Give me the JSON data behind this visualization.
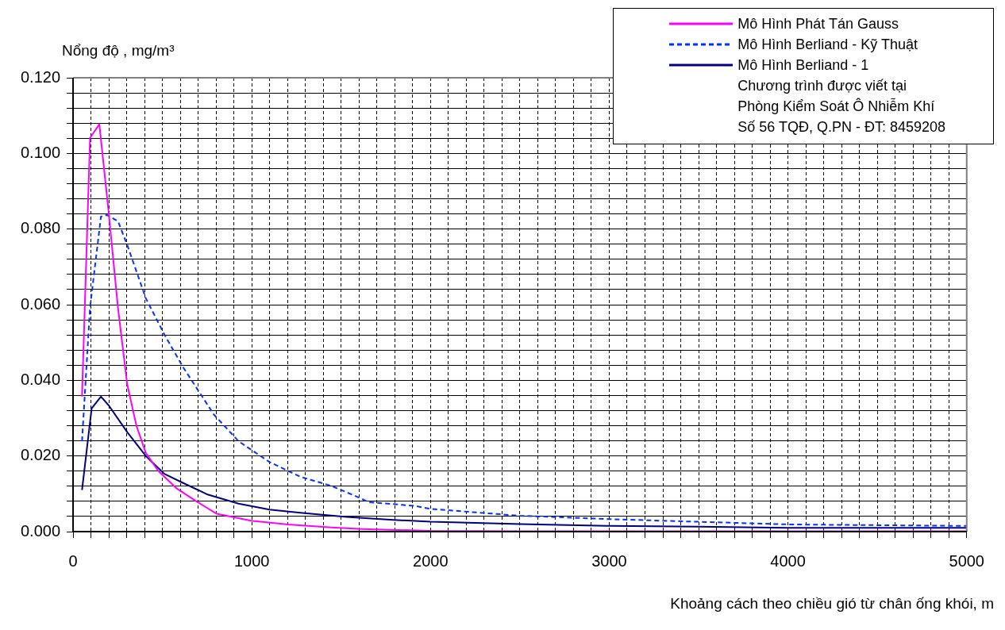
{
  "chart_data": {
    "type": "line",
    "xlabel": "Khoảng cách theo chiều gió từ chân ống khói, m",
    "ylabel": "Nổng độ , mg/m³",
    "xlim": [
      0,
      5000
    ],
    "ylim": [
      0,
      0.12
    ],
    "xticks": [
      0,
      {
        "value": 100,
        "label": null
      },
      {
        "value": 200,
        "label": null
      },
      {
        "value": 300,
        "label": null
      },
      {
        "value": 400,
        "label": null
      },
      {
        "value": 500,
        "label": null
      },
      {
        "value": 600,
        "label": null
      },
      {
        "value": 700,
        "label": null
      },
      {
        "value": 800,
        "label": null
      },
      {
        "value": 900,
        "label": null
      },
      1000,
      {
        "value": 1100,
        "label": null
      },
      {
        "value": 1200,
        "label": null
      },
      {
        "value": 1300,
        "label": null
      },
      {
        "value": 1400,
        "label": null
      },
      {
        "value": 1500,
        "label": null
      },
      {
        "value": 1600,
        "label": null
      },
      {
        "value": 1700,
        "label": null
      },
      {
        "value": 1800,
        "label": null
      },
      {
        "value": 1900,
        "label": null
      },
      2000,
      {
        "value": 2100,
        "label": null
      },
      {
        "value": 2200,
        "label": null
      },
      {
        "value": 2300,
        "label": null
      },
      {
        "value": 2400,
        "label": null
      },
      {
        "value": 2500,
        "label": null
      },
      {
        "value": 2600,
        "label": null
      },
      {
        "value": 2700,
        "label": null
      },
      {
        "value": 2800,
        "label": null
      },
      {
        "value": 2900,
        "label": null
      },
      3000,
      {
        "value": 3100,
        "label": null
      },
      {
        "value": 3200,
        "label": null
      },
      {
        "value": 3300,
        "label": null
      },
      {
        "value": 3400,
        "label": null
      },
      {
        "value": 3500,
        "label": null
      },
      {
        "value": 3600,
        "label": null
      },
      {
        "value": 3700,
        "label": null
      },
      {
        "value": 3800,
        "label": null
      },
      {
        "value": 3900,
        "label": null
      },
      4000,
      {
        "value": 4100,
        "label": null
      },
      {
        "value": 4200,
        "label": null
      },
      {
        "value": 4300,
        "label": null
      },
      {
        "value": 4400,
        "label": null
      },
      {
        "value": 4500,
        "label": null
      },
      {
        "value": 4600,
        "label": null
      },
      {
        "value": 4700,
        "label": null
      },
      {
        "value": 4800,
        "label": null
      },
      {
        "value": 4900,
        "label": null
      },
      5000
    ],
    "yticks": [
      {
        "value": 0,
        "label": "0.000"
      },
      {
        "value": 0.004,
        "label": null
      },
      {
        "value": 0.008,
        "label": null
      },
      {
        "value": 0.012,
        "label": null
      },
      {
        "value": 0.016,
        "label": null
      },
      {
        "value": 0.02,
        "label": "0.020"
      },
      {
        "value": 0.024,
        "label": null
      },
      {
        "value": 0.028,
        "label": null
      },
      {
        "value": 0.032,
        "label": null
      },
      {
        "value": 0.036,
        "label": null
      },
      {
        "value": 0.04,
        "label": "0.040"
      },
      {
        "value": 0.044,
        "label": null
      },
      {
        "value": 0.048,
        "label": null
      },
      {
        "value": 0.052,
        "label": null
      },
      {
        "value": 0.056,
        "label": null
      },
      {
        "value": 0.06,
        "label": "0.060"
      },
      {
        "value": 0.064,
        "label": null
      },
      {
        "value": 0.068,
        "label": null
      },
      {
        "value": 0.072,
        "label": null
      },
      {
        "value": 0.076,
        "label": null
      },
      {
        "value": 0.08,
        "label": "0.080"
      },
      {
        "value": 0.084,
        "label": null
      },
      {
        "value": 0.088,
        "label": null
      },
      {
        "value": 0.092,
        "label": null
      },
      {
        "value": 0.096,
        "label": null
      },
      {
        "value": 0.1,
        "label": "0.100"
      },
      {
        "value": 0.104,
        "label": null
      },
      {
        "value": 0.108,
        "label": null
      },
      {
        "value": 0.112,
        "label": null
      },
      {
        "value": 0.116,
        "label": null
      },
      {
        "value": 0.12,
        "label": "0.120"
      }
    ],
    "grid": true,
    "legend": "top right",
    "marker": "none",
    "series": [
      {
        "name": "Mô Hình Phát Tán Gauss",
        "color": "#ff00ff",
        "line_style": "solid",
        "x": [
          50,
          95,
          147,
          199,
          251,
          303,
          355,
          407,
          476,
          580,
          683,
          804,
          995,
          1202,
          1445,
          1618,
          2000,
          2500,
          3000,
          4000,
          5000
        ],
        "values": [
          0.0357,
          0.1041,
          0.1077,
          0.0845,
          0.0593,
          0.0389,
          0.0279,
          0.0208,
          0.0161,
          0.0114,
          0.0082,
          0.0047,
          0.0029,
          0.0019,
          0.0011,
          0.0007,
          0.0002,
          0.0001,
          0.0001,
          0.0001,
          0.0001
        ]
      },
      {
        "name": "Mô Hình Berliand - Kỹ Thuật",
        "color": "#0033ff",
        "line_style": "dashed",
        "x": [
          50,
          95,
          156,
          190,
          251,
          303,
          407,
          510,
          614,
          787,
          926,
          1099,
          1272,
          1445,
          1600,
          1652,
          1912,
          2000,
          2500,
          3000,
          3500,
          4000,
          4500,
          5000
        ],
        "values": [
          0.0239,
          0.0593,
          0.0833,
          0.0837,
          0.0821,
          0.0758,
          0.0617,
          0.0522,
          0.0436,
          0.031,
          0.0239,
          0.0184,
          0.0145,
          0.0121,
          0.009,
          0.0078,
          0.0068,
          0.006,
          0.0042,
          0.0033,
          0.0026,
          0.0019,
          0.0017,
          0.0015
        ]
      },
      {
        "name": "Mô Hình Berliand - 1",
        "color": "#000080",
        "line_style": "solid",
        "x": [
          50,
          104,
          156,
          199,
          303,
          407,
          510,
          614,
          753,
          926,
          1099,
          1272,
          1531,
          1791,
          2000,
          2500,
          3000,
          3500,
          4000,
          5000
        ],
        "values": [
          0.011,
          0.0326,
          0.0357,
          0.0334,
          0.0263,
          0.02,
          0.0153,
          0.0129,
          0.0098,
          0.0074,
          0.0058,
          0.005,
          0.0039,
          0.0031,
          0.0026,
          0.002,
          0.0015,
          0.0013,
          0.001,
          0.001
        ]
      }
    ],
    "annotations": [
      "Chương trình được viết tại",
      "Phòng Kiểm Soát Ô Nhiễm Khí",
      "Số 56 TQĐ, Q.PN - ĐT: 8459208"
    ]
  }
}
